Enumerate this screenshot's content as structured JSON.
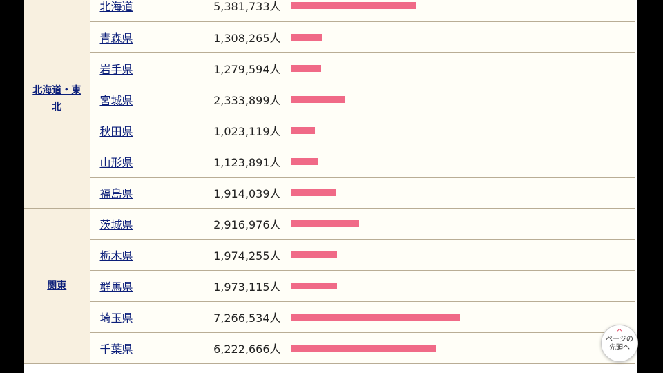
{
  "regions": [
    {
      "label": "北海道・東北"
    },
    {
      "label": "関東"
    }
  ],
  "rows": [
    {
      "name": "北海道",
      "population": "5,381,733人",
      "value": 5381733
    },
    {
      "name": "青森県",
      "population": "1,308,265人",
      "value": 1308265
    },
    {
      "name": "岩手県",
      "population": "1,279,594人",
      "value": 1279594
    },
    {
      "name": "宮城県",
      "population": "2,333,899人",
      "value": 2333899
    },
    {
      "name": "秋田県",
      "population": "1,023,119人",
      "value": 1023119
    },
    {
      "name": "山形県",
      "population": "1,123,891人",
      "value": 1123891
    },
    {
      "name": "福島県",
      "population": "1,914,039人",
      "value": 1914039
    },
    {
      "name": "茨城県",
      "population": "2,916,976人",
      "value": 2916976
    },
    {
      "name": "栃木県",
      "population": "1,974,255人",
      "value": 1974255
    },
    {
      "name": "群馬県",
      "population": "1,973,115人",
      "value": 1973115
    },
    {
      "name": "埼玉県",
      "population": "7,266,534人",
      "value": 7266534
    },
    {
      "name": "千葉県",
      "population": "6,222,666人",
      "value": 6222666
    }
  ],
  "scroll_top": {
    "line1": "ページの",
    "line2": "先頭へ"
  },
  "colors": {
    "bar": "#f06a87",
    "region_bg": "#f8f0e0",
    "link": "#0c1f7a"
  }
}
